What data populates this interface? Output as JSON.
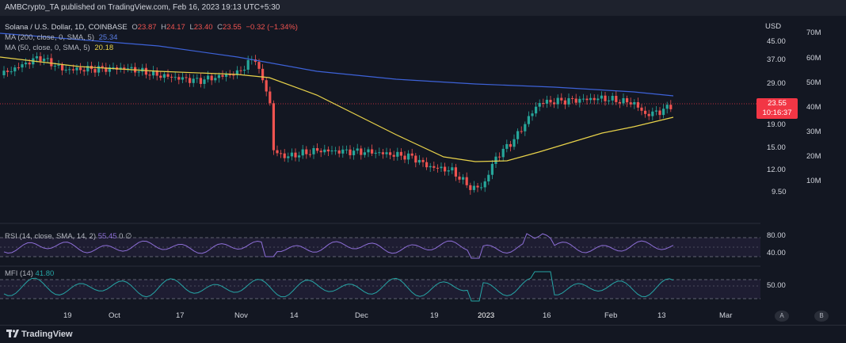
{
  "publisher_text": "AMBCrypto_TA published on TradingView.com, Feb 16, 2023 19:13 UTC+5:30",
  "symbol": {
    "name": "Solana / U.S. Dollar, 1D, COINBASE",
    "open_label": "O",
    "open": "23.87",
    "high_label": "H",
    "high": "24.17",
    "low_label": "L",
    "low": "23.40",
    "close_label": "C",
    "close": "23.55",
    "change": "−0.32 (−1.34%)"
  },
  "ma200": {
    "label": "MA (200, close, 0, SMA, 5)",
    "value": "25.34",
    "color": "#3d62d8"
  },
  "ma50": {
    "label": "MA (50, close, 0, SMA, 5)",
    "value": "20.18",
    "color": "#e8d24a"
  },
  "rsi": {
    "label": "RSI (14, close, SMA, 14, 2)",
    "value": "55.45",
    "extra": "0 ∅",
    "color": "#8e6fd8"
  },
  "mfi": {
    "label": "MFI (14)",
    "value": "41.80",
    "color": "#26a6a6"
  },
  "price_axis": {
    "currency": "USD",
    "ticks": [
      "45.00",
      "37.00",
      "29.00",
      "19.00",
      "15.00",
      "12.00",
      "9.50"
    ],
    "current_price": "23.55",
    "countdown": "10:16:37"
  },
  "volume_axis": {
    "ticks": [
      "70M",
      "60M",
      "50M",
      "40M",
      "30M",
      "20M",
      "10M"
    ]
  },
  "rsi_axis": {
    "ticks": [
      "80.00",
      "40.00"
    ]
  },
  "mfi_axis": {
    "ticks": [
      "50.00"
    ]
  },
  "time_axis": {
    "ticks": [
      "19",
      "Oct",
      "17",
      "Nov",
      "14",
      "Dec",
      "19",
      "2023",
      "16",
      "Feb",
      "13",
      "Mar"
    ]
  },
  "scale_buttons": [
    "A",
    "B"
  ],
  "brand": "TradingView",
  "colors": {
    "up": "#26a69a",
    "down": "#ef5350",
    "background": "#131722"
  }
}
